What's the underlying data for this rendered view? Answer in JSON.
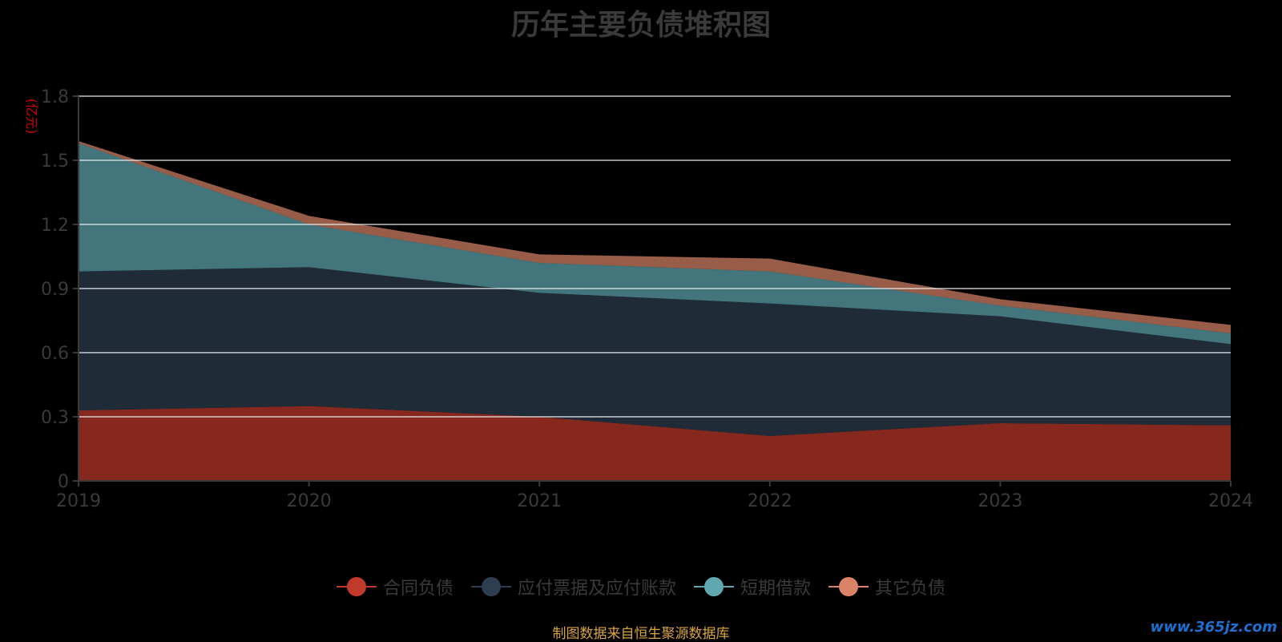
{
  "chart_data": {
    "type": "area",
    "stacked": true,
    "title": "历年主要负债堆积图",
    "ylabel": "(亿元)",
    "xlabel": "",
    "categories": [
      "2019",
      "2020",
      "2021",
      "2022",
      "2023",
      "2024"
    ],
    "yticks": [
      "0",
      "0.3",
      "0.6",
      "0.9",
      "1.2",
      "1.5",
      "1.8"
    ],
    "ylim": [
      0,
      1.8
    ],
    "grid": true,
    "legend_position": "bottom",
    "series": [
      {
        "name": "合同负债",
        "color": "#c0392b",
        "values": [
          0.33,
          0.35,
          0.3,
          0.21,
          0.27,
          0.26
        ]
      },
      {
        "name": "应付票据及应付账款",
        "color": "#2c3e50",
        "values": [
          0.65,
          0.65,
          0.58,
          0.62,
          0.5,
          0.38
        ]
      },
      {
        "name": "短期借款",
        "color": "#5fa8b0",
        "values": [
          0.6,
          0.2,
          0.14,
          0.15,
          0.05,
          0.05
        ]
      },
      {
        "name": "其它负债",
        "color": "#d98466",
        "values": [
          0.01,
          0.04,
          0.04,
          0.06,
          0.03,
          0.04
        ]
      }
    ]
  },
  "source_note": "制图数据来自恒生聚源数据库",
  "watermark": "www.365jz.com"
}
